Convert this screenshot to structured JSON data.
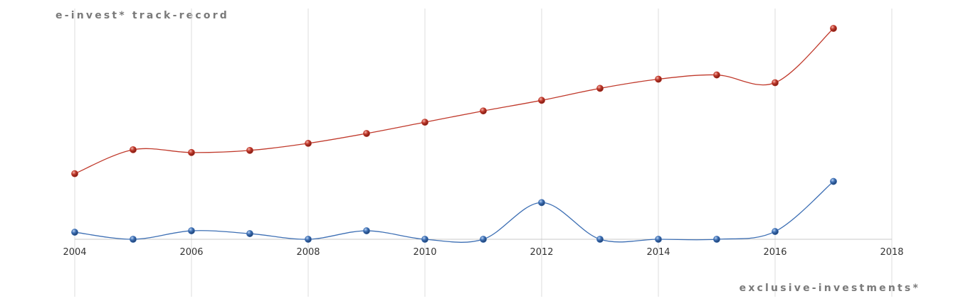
{
  "header": {
    "title": "e-invest* track-record"
  },
  "footer": {
    "brand": "exclusive-investments*"
  },
  "chart_data": {
    "type": "line",
    "title": "e-invest* track-record",
    "xlabel": "",
    "ylabel": "",
    "x_tick_labels": [
      "2004",
      "2006",
      "2008",
      "2010",
      "2012",
      "2014",
      "2016",
      "2018"
    ],
    "xlim": [
      2004,
      2018
    ],
    "ylim": [
      0,
      300
    ],
    "grid": "vertical",
    "smooth": true,
    "x": [
      2004,
      2005,
      2006,
      2007,
      2008,
      2009,
      2010,
      2011,
      2012,
      2013,
      2014,
      2015,
      2016,
      2017
    ],
    "series": [
      {
        "color": "#c0392b",
        "values": [
          93,
          127,
          123,
          126,
          136,
          150,
          166,
          182,
          197,
          214,
          227,
          233,
          222,
          299
        ]
      },
      {
        "color": "#3d6fb4",
        "values": [
          10,
          0,
          12,
          8,
          0,
          12,
          0,
          0,
          52,
          0,
          0,
          0,
          11,
          82
        ]
      }
    ]
  }
}
